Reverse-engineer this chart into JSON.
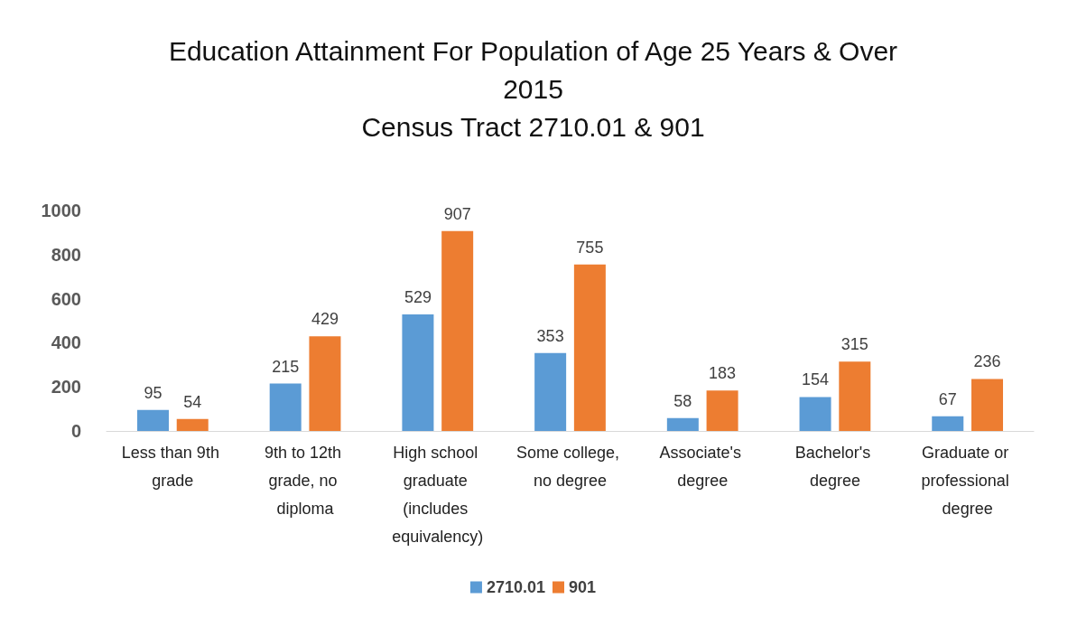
{
  "chart_data": {
    "type": "bar",
    "title": "Education Attainment For Population of Age 25 Years & Over\n2015\nCensus Tract 2710.01 & 901",
    "categories": [
      "Less than 9th grade",
      "9th to 12th grade, no diploma",
      "High school graduate (includes equivalency)",
      "Some college, no degree",
      "Associate's degree",
      "Bachelor's degree",
      "Graduate or professional degree"
    ],
    "series": [
      {
        "name": "2710.01",
        "color": "#5b9bd5",
        "values": [
          95,
          215,
          529,
          353,
          58,
          154,
          67
        ]
      },
      {
        "name": "901",
        "color": "#ed7d31",
        "values": [
          54,
          429,
          907,
          755,
          183,
          315,
          236
        ]
      }
    ],
    "ylim": [
      0,
      1000
    ],
    "yticks": [
      0,
      200,
      400,
      600,
      800,
      1000
    ],
    "grid": false,
    "legend": "bottom",
    "data_labels": true
  }
}
